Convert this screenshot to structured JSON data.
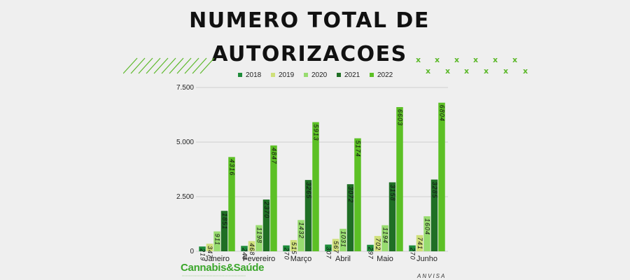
{
  "header": {
    "title_line1": "NUMERO TOTAL DE",
    "title_line2": "AUTORIZACOES"
  },
  "branding": {
    "logo_text": "Cannabis&Saúde",
    "source_text": "ANVISA",
    "accent_color": "#5cb82a",
    "logo_color": "#3aa62a"
  },
  "chart_data": {
    "type": "bar",
    "title": "NUMERO TOTAL DE AUTORIZACOES",
    "categories": [
      "Janeiro",
      "Fevereiro",
      "Março",
      "Abril",
      "Maio",
      "Junho"
    ],
    "series": [
      {
        "name": "2018",
        "color": "#1e8c3a",
        "values": [
          219,
          248,
          270,
          307,
          297,
          270
        ],
        "labels": [
          "219",
          "248",
          "270",
          "307",
          "297",
          "270"
        ]
      },
      {
        "name": "2019",
        "color": "#cfe07a",
        "values": [
          347,
          468,
          515,
          567,
          702,
          741
        ],
        "labels": [
          "347",
          "468",
          "515",
          "567",
          "702",
          "741"
        ]
      },
      {
        "name": "2020",
        "color": "#98dc70",
        "values": [
          911,
          1198,
          1432,
          1031,
          1194,
          1604
        ],
        "labels": [
          "911",
          "1198",
          "1432",
          "1031",
          "1194",
          "1604"
        ]
      },
      {
        "name": "2021",
        "color": "#1f6f25",
        "values": [
          1851,
          2370,
          3265,
          3072,
          3158,
          3285
        ],
        "labels": [
          "1851",
          "2370",
          "3265",
          "3072",
          "3158",
          "3285"
        ]
      },
      {
        "name": "2022",
        "color": "#5cc025",
        "values": [
          4316,
          4847,
          5913,
          5174,
          6603,
          6804
        ],
        "labels": [
          "4316",
          "4847",
          "5913",
          "5174",
          "6603",
          "6804"
        ]
      }
    ],
    "yticks": [
      0,
      2500,
      5000,
      7500
    ],
    "ytick_labels": [
      "0",
      "2.500",
      "5.000",
      "7.500"
    ],
    "ylim": [
      0,
      7500
    ],
    "grid": true,
    "legend_position": "top"
  }
}
